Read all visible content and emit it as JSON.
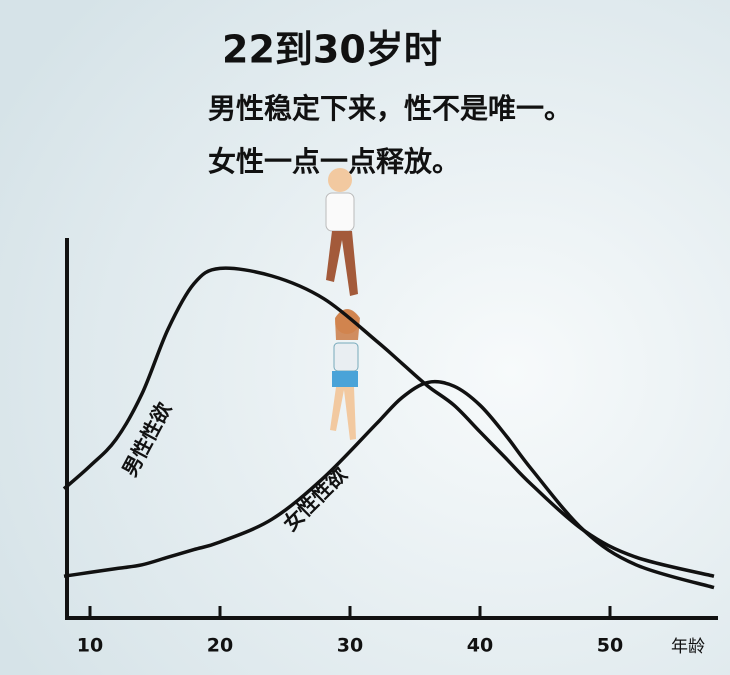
{
  "chart_data": {
    "type": "line",
    "title": "22到30岁时",
    "subtitle_lines": [
      "男性稳定下来，性不是唯一。",
      "女性一点一点释放。"
    ],
    "x_label": "年龄",
    "x": [
      8,
      10,
      12,
      14,
      16,
      18,
      20,
      24,
      28,
      32,
      34,
      36,
      38,
      40,
      42,
      44,
      48,
      52,
      58
    ],
    "series": [
      {
        "name": "男性性欲",
        "color": "#111111",
        "values": [
          34,
          40,
          47,
          59,
          76,
          88,
          92,
          90,
          84,
          73,
          67,
          61,
          56,
          49,
          42,
          35,
          23,
          16,
          11
        ]
      },
      {
        "name": "女性性欲",
        "color": "#111111",
        "values": [
          11,
          12,
          13,
          14,
          16,
          18,
          20,
          26,
          37,
          51,
          58,
          62,
          61,
          56,
          48,
          39,
          23,
          14,
          8
        ]
      }
    ],
    "xlim": [
      8,
      58
    ],
    "xticks": [
      10,
      20,
      30,
      40,
      50
    ],
    "ylim": [
      0,
      100
    ]
  }
}
